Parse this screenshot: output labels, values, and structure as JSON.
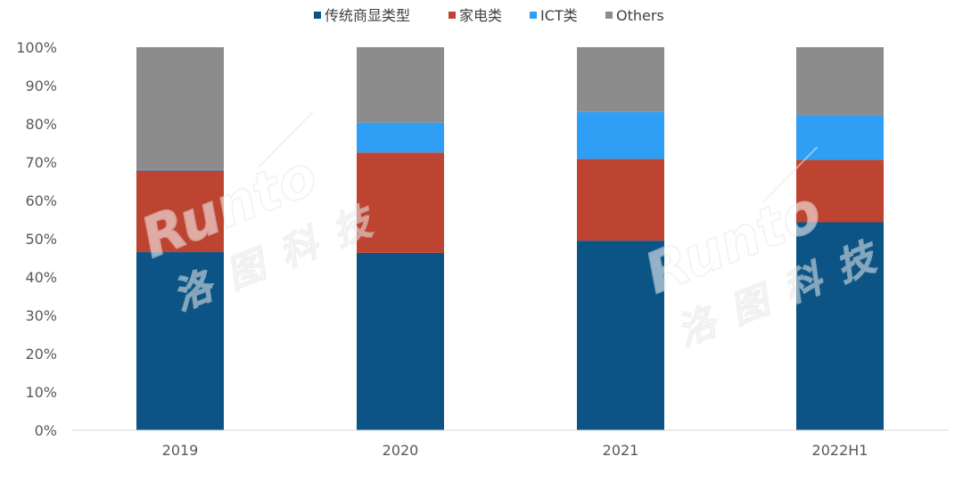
{
  "chart_data": {
    "type": "bar",
    "stacked": true,
    "percent": true,
    "categories": [
      "2019",
      "2020",
      "2021",
      "2022H1"
    ],
    "series": [
      {
        "name": "传统商显类型",
        "color": "#0B5485",
        "values": [
          46.5,
          46.3,
          49.5,
          54.3
        ]
      },
      {
        "name": "家电类",
        "color": "#BE4432",
        "values": [
          21.3,
          26.2,
          21.3,
          16.3
        ]
      },
      {
        "name": "ICT类",
        "color": "#2E9FF5",
        "values": [
          0.3,
          7.8,
          12.3,
          11.7
        ]
      },
      {
        "name": "Others",
        "color": "#8C8C8C",
        "values": [
          31.9,
          19.7,
          16.9,
          17.7
        ]
      }
    ],
    "ylim": [
      0,
      100
    ],
    "yticks": [
      "0%",
      "10%",
      "20%",
      "30%",
      "40%",
      "50%",
      "60%",
      "70%",
      "80%",
      "90%",
      "100%"
    ],
    "grid": false,
    "legend_position": "top-center"
  },
  "watermark": {
    "brand": "Runto",
    "chinese": "洛图科技"
  }
}
